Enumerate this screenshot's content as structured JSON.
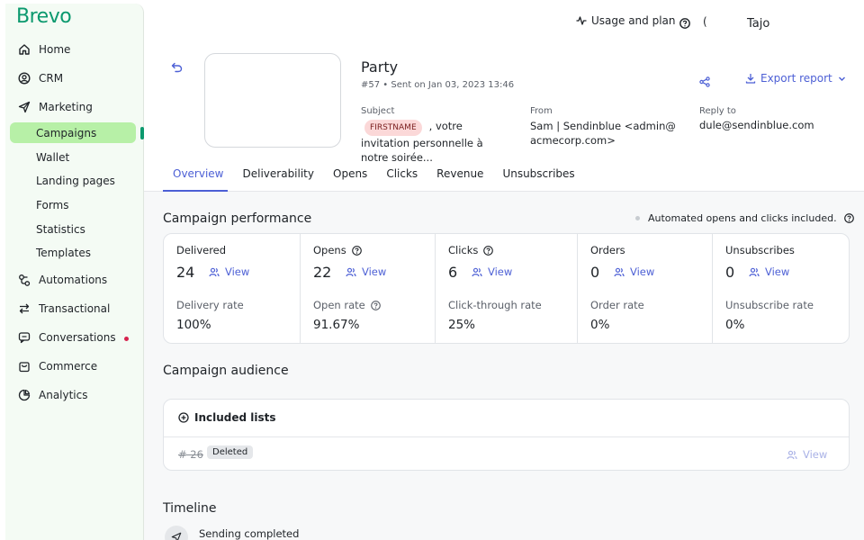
{
  "brand": {
    "logo_text": "Brevo",
    "accent": "#0b996e",
    "link": "#4c5fd5"
  },
  "topbar": {
    "usage_label": "Usage and plan",
    "user_initial": "(",
    "user_name": "Tajo"
  },
  "sidebar": {
    "items": [
      {
        "label": "Home",
        "icon": "home-icon"
      },
      {
        "label": "CRM",
        "icon": "contacts-icon"
      },
      {
        "label": "Marketing",
        "icon": "send-icon"
      },
      {
        "label": "Automations",
        "icon": "automation-icon"
      },
      {
        "label": "Transactional",
        "icon": "transactional-icon"
      },
      {
        "label": "Conversations",
        "icon": "chat-icon"
      },
      {
        "label": "Commerce",
        "icon": "commerce-icon"
      },
      {
        "label": "Analytics",
        "icon": "analytics-icon"
      }
    ],
    "marketing_sub": [
      "Campaigns",
      "Wallet",
      "Landing pages",
      "Forms",
      "Statistics",
      "Templates"
    ]
  },
  "campaign": {
    "title": "Party",
    "meta": "#57 • Sent on Jan 03, 2023 13:46",
    "export_label": "Export report",
    "subject_label": "Subject",
    "subject_tag": "FIRSTNAME",
    "subject_text": ", votre invitation personnelle à notre soirée...",
    "from_label": "From",
    "from_value": "Sam | Sendinblue <admin@acmecorp.com>",
    "reply_label": "Reply to",
    "reply_value": "dule@sendinblue.com"
  },
  "tabs": [
    "Overview",
    "Deliverability",
    "Opens",
    "Clicks",
    "Revenue",
    "Unsubscribes"
  ],
  "performance": {
    "title": "Campaign performance",
    "note": "Automated opens and clicks included.",
    "view_label": "View",
    "cells": [
      {
        "label": "Delivered",
        "value": "24",
        "rate_label": "Delivery rate",
        "rate": "100%"
      },
      {
        "label": "Opens",
        "value": "22",
        "rate_label": "Open rate",
        "rate": "91.67%"
      },
      {
        "label": "Clicks",
        "value": "6",
        "rate_label": "Click-through rate",
        "rate": "25%"
      },
      {
        "label": "Orders",
        "value": "0",
        "rate_label": "Order rate",
        "rate": "0%"
      },
      {
        "label": "Unsubscribes",
        "value": "0",
        "rate_label": "Unsubscribe rate",
        "rate": "0%"
      }
    ]
  },
  "audience": {
    "title": "Campaign audience",
    "included_label": "Included lists",
    "list_id": "# 26",
    "badge": "Deleted",
    "view_label": "View"
  },
  "timeline": {
    "title": "Timeline",
    "event": "Sending completed"
  }
}
